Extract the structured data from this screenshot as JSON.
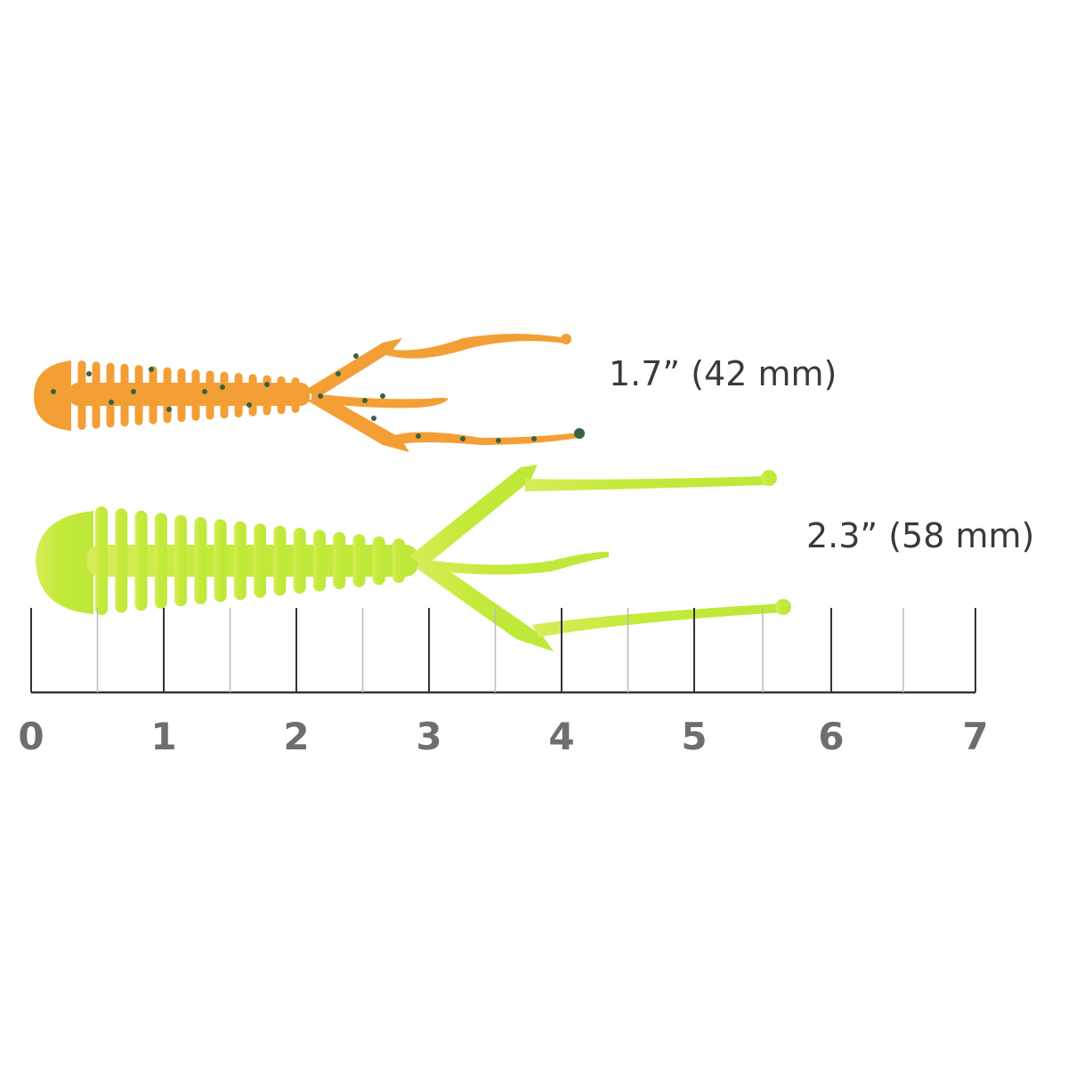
{
  "lures": [
    {
      "size_label": "1.7” (42 mm)",
      "color": "#f39a2b",
      "fleck_color": "#2f5a3a"
    },
    {
      "size_label": "2.3” (58 mm)",
      "color": "#c6ec3c"
    }
  ],
  "ruler": {
    "unit": "inch",
    "labels": [
      "0",
      "1",
      "2",
      "3",
      "4",
      "5",
      "6",
      "7"
    ],
    "major_color": "#333333",
    "minor_color": "#bbbbbb",
    "label_color": "#6e6e6e"
  }
}
